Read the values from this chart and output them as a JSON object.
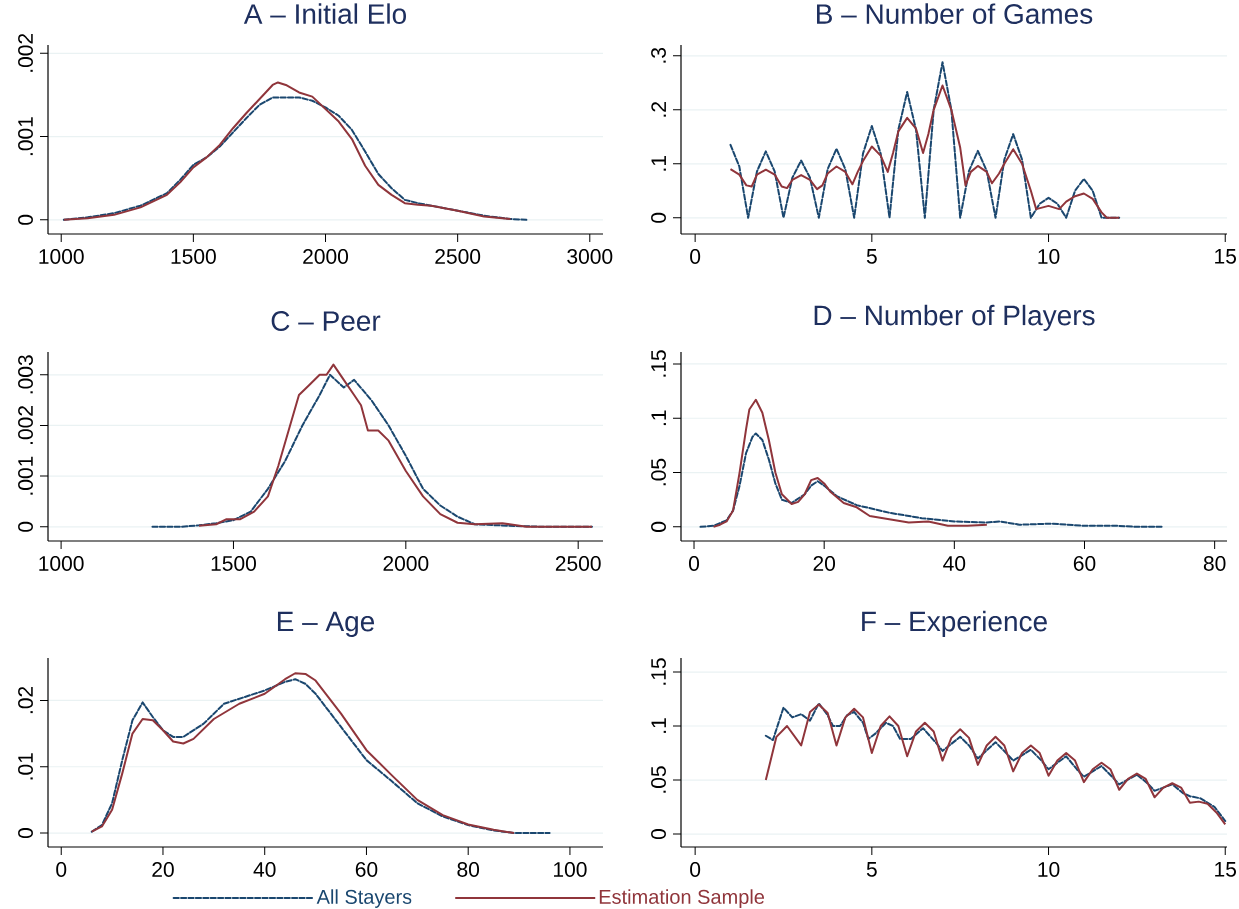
{
  "chart_data": [
    {
      "type": "line",
      "title": "A – Initial Elo",
      "xlim": [
        950,
        3050
      ],
      "ylim": [
        -0.00017,
        0.0021
      ],
      "xticks": [
        1000,
        1500,
        2000,
        2500,
        3000
      ],
      "yticks": [
        0,
        {
          "value": 0.001,
          "label": ".001"
        },
        {
          "value": 0.002,
          "label": ".002"
        }
      ],
      "grid": "y",
      "series": [
        {
          "color": "#1a476f",
          "line_style": "dashed",
          "x": [
            1010,
            1100,
            1200,
            1300,
            1400,
            1450,
            1500,
            1550,
            1600,
            1650,
            1700,
            1750,
            1800,
            1850,
            1900,
            1950,
            2000,
            2050,
            2100,
            2150,
            2200,
            2250,
            2300,
            2350,
            2400,
            2500,
            2600,
            2700,
            2760
          ],
          "values": [
            0,
            3e-05,
            8e-05,
            0.00017,
            0.00032,
            0.00048,
            0.00066,
            0.00075,
            0.00088,
            0.00105,
            0.00122,
            0.00138,
            0.00147,
            0.00147,
            0.00147,
            0.00143,
            0.00135,
            0.00125,
            0.00108,
            0.00082,
            0.00055,
            0.00038,
            0.00024,
            0.0002,
            0.00017,
            0.00011,
            5e-05,
            1e-05,
            0
          ]
        },
        {
          "color": "#90353b",
          "line_style": "solid",
          "x": [
            1010,
            1100,
            1200,
            1300,
            1400,
            1450,
            1500,
            1550,
            1600,
            1650,
            1700,
            1750,
            1800,
            1820,
            1850,
            1900,
            1950,
            2000,
            2050,
            2100,
            2150,
            2200,
            2250,
            2300,
            2350,
            2400,
            2500,
            2600,
            2700
          ],
          "values": [
            0,
            2e-05,
            6e-05,
            0.00015,
            0.0003,
            0.00045,
            0.00063,
            0.00075,
            0.0009,
            0.0011,
            0.00128,
            0.00145,
            0.00162,
            0.00165,
            0.00162,
            0.00153,
            0.00148,
            0.00133,
            0.00118,
            0.00097,
            0.00065,
            0.00042,
            0.0003,
            0.0002,
            0.00018,
            0.00017,
            0.00011,
            4e-05,
            1e-05
          ]
        }
      ]
    },
    {
      "type": "line",
      "title": "B – Number of Games",
      "xlim": [
        -0.4,
        15.05
      ],
      "ylim": [
        -0.03,
        0.32
      ],
      "xticks": [
        0,
        5,
        10,
        15
      ],
      "yticks": [
        0,
        {
          "value": 0.1,
          "label": ".1"
        },
        {
          "value": 0.2,
          "label": ".2"
        },
        {
          "value": 0.3,
          "label": ".3"
        }
      ],
      "grid": "y",
      "series": [
        {
          "color": "#1a476f",
          "line_style": "dashed",
          "x": [
            1,
            1.25,
            1.5,
            1.75,
            2,
            2.25,
            2.5,
            2.75,
            3,
            3.25,
            3.5,
            3.75,
            4,
            4.25,
            4.5,
            4.75,
            5,
            5.25,
            5.5,
            5.75,
            6,
            6.25,
            6.5,
            6.75,
            7,
            7.25,
            7.5,
            7.75,
            8,
            8.25,
            8.5,
            8.75,
            9,
            9.25,
            9.5,
            9.75,
            10,
            10.25,
            10.5,
            10.75,
            11,
            11.25,
            11.5,
            12
          ],
          "values": [
            0.135,
            0.095,
            0,
            0.086,
            0.123,
            0.086,
            0,
            0.074,
            0.106,
            0.074,
            0,
            0.09,
            0.128,
            0.09,
            0,
            0.119,
            0.17,
            0.119,
            0,
            0.163,
            0.233,
            0.163,
            0,
            0.2,
            0.288,
            0.2,
            0,
            0.087,
            0.124,
            0.087,
            0,
            0.108,
            0.155,
            0.108,
            0,
            0.026,
            0.037,
            0.026,
            0,
            0.05,
            0.072,
            0.05,
            0,
            0
          ]
        },
        {
          "color": "#90353b",
          "line_style": "solid",
          "x": [
            1,
            1.25,
            1.45,
            1.6,
            1.75,
            2,
            2.25,
            2.45,
            2.6,
            2.75,
            3,
            3.25,
            3.45,
            3.6,
            3.75,
            4,
            4.25,
            4.45,
            4.6,
            4.75,
            5,
            5.25,
            5.45,
            5.6,
            5.75,
            6,
            6.25,
            6.45,
            6.6,
            6.75,
            7,
            7.25,
            7.5,
            7.65,
            7.8,
            8,
            8.25,
            8.4,
            8.6,
            8.75,
            9,
            9.25,
            9.5,
            9.65,
            10,
            10.3,
            10.5,
            10.75,
            11,
            11.25,
            11.5,
            11.65,
            12
          ],
          "values": [
            0.09,
            0.08,
            0.06,
            0.058,
            0.08,
            0.089,
            0.08,
            0.058,
            0.055,
            0.07,
            0.079,
            0.07,
            0.053,
            0.06,
            0.082,
            0.095,
            0.085,
            0.062,
            0.085,
            0.105,
            0.132,
            0.115,
            0.085,
            0.12,
            0.16,
            0.185,
            0.165,
            0.12,
            0.155,
            0.2,
            0.245,
            0.2,
            0.13,
            0.06,
            0.085,
            0.096,
            0.085,
            0.064,
            0.082,
            0.1,
            0.127,
            0.1,
            0.05,
            0.016,
            0.022,
            0.016,
            0.03,
            0.04,
            0.045,
            0.035,
            0.01,
            0,
            0
          ]
        }
      ]
    },
    {
      "type": "line",
      "title": "C – Peer",
      "xlim": [
        962,
        2572
      ],
      "ylim": [
        -0.00028,
        0.00345
      ],
      "xticks": [
        1000,
        1500,
        2000,
        2500
      ],
      "yticks": [
        0,
        {
          "value": 0.001,
          "label": ".001"
        },
        {
          "value": 0.002,
          "label": ".002"
        },
        {
          "value": 0.003,
          "label": ".003"
        }
      ],
      "grid": "y",
      "series": [
        {
          "color": "#1a476f",
          "line_style": "dashed",
          "x": [
            1265,
            1350,
            1400,
            1450,
            1500,
            1550,
            1600,
            1650,
            1700,
            1750,
            1780,
            1820,
            1850,
            1875,
            1900,
            1950,
            2000,
            2050,
            2100,
            2150,
            2200,
            2300,
            2400,
            2540
          ],
          "values": [
            0,
            0,
            3e-05,
            7e-05,
            0.00013,
            0.0003,
            0.00075,
            0.0013,
            0.002,
            0.0026,
            0.003,
            0.00275,
            0.0029,
            0.0027,
            0.0025,
            0.002,
            0.0014,
            0.00075,
            0.00042,
            0.0002,
            5e-05,
            2e-05,
            0,
            0
          ]
        },
        {
          "color": "#90353b",
          "line_style": "solid",
          "x": [
            1400,
            1450,
            1480,
            1520,
            1560,
            1600,
            1630,
            1660,
            1690,
            1720,
            1750,
            1770,
            1790,
            1820,
            1850,
            1870,
            1890,
            1920,
            1950,
            2000,
            2050,
            2100,
            2150,
            2200,
            2280,
            2350,
            2540
          ],
          "values": [
            2e-05,
            5e-05,
            0.00015,
            0.00015,
            0.0003,
            0.0006,
            0.0012,
            0.0019,
            0.0026,
            0.0028,
            0.003,
            0.003,
            0.0032,
            0.0029,
            0.0026,
            0.0024,
            0.0019,
            0.0019,
            0.0017,
            0.0011,
            0.0006,
            0.00025,
            8e-05,
            5e-05,
            7e-05,
            0,
            0
          ]
        }
      ]
    },
    {
      "type": "line",
      "title": "D – Number of Players",
      "xlim": [
        -2,
        81.9
      ],
      "ylim": [
        -0.013,
        0.161
      ],
      "xticks": [
        0,
        20,
        40,
        60,
        80
      ],
      "yticks": [
        0,
        {
          "value": 0.05,
          "label": ".05"
        },
        {
          "value": 0.1,
          "label": ".1"
        },
        {
          "value": 0.15,
          "label": ".15"
        }
      ],
      "grid": "y",
      "series": [
        {
          "color": "#1a476f",
          "line_style": "dashed",
          "x": [
            1,
            3,
            5,
            6,
            7,
            8,
            9,
            9.5,
            10.5,
            11.5,
            12.5,
            13.5,
            15,
            17,
            18,
            19,
            20,
            22,
            25,
            30,
            35,
            40,
            45,
            47,
            50,
            55,
            60,
            65,
            68,
            72
          ],
          "values": [
            0,
            0.001,
            0.006,
            0.015,
            0.038,
            0.068,
            0.083,
            0.086,
            0.08,
            0.062,
            0.04,
            0.025,
            0.022,
            0.03,
            0.038,
            0.042,
            0.038,
            0.028,
            0.02,
            0.013,
            0.008,
            0.005,
            0.004,
            0.005,
            0.002,
            0.003,
            0.001,
            0.001,
            0,
            0
          ]
        },
        {
          "color": "#90353b",
          "line_style": "solid",
          "x": [
            3,
            4,
            5,
            6,
            7,
            8,
            8.5,
            9.5,
            10.5,
            11.5,
            12.5,
            13.5,
            15,
            16,
            17,
            18,
            19,
            20,
            21,
            23,
            25,
            27,
            30,
            33,
            36,
            39,
            42,
            45
          ],
          "values": [
            0,
            0.002,
            0.005,
            0.015,
            0.05,
            0.09,
            0.108,
            0.117,
            0.105,
            0.08,
            0.05,
            0.03,
            0.021,
            0.023,
            0.03,
            0.043,
            0.045,
            0.04,
            0.032,
            0.022,
            0.018,
            0.01,
            0.007,
            0.004,
            0.005,
            0.001,
            0.001,
            0.002
          ]
        }
      ]
    },
    {
      "type": "line",
      "title": "E – Age",
      "xlim": [
        -2.6,
        106.5
      ],
      "ylim": [
        -0.0021,
        0.0264
      ],
      "xticks": [
        0,
        20,
        40,
        60,
        80,
        100
      ],
      "yticks": [
        0,
        {
          "value": 0.01,
          "label": ".01"
        },
        {
          "value": 0.02,
          "label": ".02"
        }
      ],
      "grid": "y",
      "legend": "bottom",
      "series": [
        {
          "name": "All Stayers",
          "color": "#1a476f",
          "line_style": "dashed",
          "x": [
            6,
            8,
            10,
            12,
            14,
            16,
            18,
            20,
            22,
            24,
            28,
            32,
            36,
            40,
            44,
            46,
            48,
            50,
            55,
            60,
            65,
            70,
            75,
            80,
            85,
            89,
            96
          ],
          "values": [
            0.0002,
            0.0012,
            0.0045,
            0.011,
            0.017,
            0.0197,
            0.0175,
            0.0155,
            0.0145,
            0.0145,
            0.0165,
            0.0195,
            0.0205,
            0.0215,
            0.0228,
            0.0232,
            0.0225,
            0.021,
            0.016,
            0.011,
            0.0078,
            0.0045,
            0.0025,
            0.0012,
            0.0004,
            0,
            0
          ]
        },
        {
          "name": "Estimation Sample",
          "color": "#90353b",
          "line_style": "solid",
          "x": [
            6,
            8,
            10,
            12,
            14,
            16,
            18,
            20,
            22,
            24,
            26,
            30,
            35,
            40,
            44,
            46,
            48,
            50,
            55,
            60,
            65,
            70,
            75,
            80,
            85,
            89
          ],
          "values": [
            0.0002,
            0.001,
            0.0035,
            0.009,
            0.015,
            0.0172,
            0.017,
            0.0155,
            0.0138,
            0.0135,
            0.0142,
            0.0172,
            0.0195,
            0.021,
            0.0232,
            0.0241,
            0.024,
            0.023,
            0.018,
            0.0125,
            0.0087,
            0.005,
            0.0027,
            0.0013,
            0.0005,
            0
          ]
        }
      ]
    },
    {
      "type": "line",
      "title": "F – Experience",
      "xlim": [
        -0.4,
        15.05
      ],
      "ylim": [
        -0.012,
        0.163
      ],
      "xticks": [
        0,
        5,
        10,
        15
      ],
      "yticks": [
        0,
        {
          "value": 0.05,
          "label": ".05"
        },
        {
          "value": 0.1,
          "label": ".1"
        },
        {
          "value": 0.15,
          "label": ".15"
        }
      ],
      "grid": "y",
      "series": [
        {
          "color": "#1a476f",
          "line_style": "dashed",
          "x": [
            2,
            2.2,
            2.5,
            2.75,
            3,
            3.25,
            3.5,
            3.75,
            3.9,
            4.1,
            4.3,
            4.5,
            4.75,
            4.9,
            5.1,
            5.4,
            5.6,
            5.8,
            6.1,
            6.45,
            6.8,
            7,
            7.5,
            7.75,
            8,
            8.5,
            8.8,
            9,
            9.5,
            9.8,
            10,
            10.5,
            10.8,
            11,
            11.5,
            11.8,
            12,
            12.5,
            12.8,
            13,
            13.5,
            13.8,
            14,
            14.3,
            14.7,
            15
          ],
          "values": [
            0.091,
            0.087,
            0.117,
            0.108,
            0.111,
            0.105,
            0.121,
            0.11,
            0.1,
            0.1,
            0.11,
            0.113,
            0.103,
            0.088,
            0.093,
            0.103,
            0.1,
            0.088,
            0.088,
            0.098,
            0.085,
            0.077,
            0.09,
            0.082,
            0.07,
            0.085,
            0.075,
            0.068,
            0.078,
            0.068,
            0.06,
            0.072,
            0.06,
            0.053,
            0.063,
            0.053,
            0.046,
            0.055,
            0.047,
            0.04,
            0.046,
            0.038,
            0.035,
            0.033,
            0.025,
            0.012
          ]
        },
        {
          "color": "#90353b",
          "line_style": "solid",
          "x": [
            2,
            2.3,
            2.6,
            3,
            3.25,
            3.5,
            3.75,
            4,
            4.25,
            4.5,
            4.75,
            5,
            5.25,
            5.5,
            5.75,
            6,
            6.25,
            6.5,
            6.75,
            7,
            7.25,
            7.5,
            7.75,
            8,
            8.25,
            8.5,
            8.75,
            9,
            9.25,
            9.5,
            9.75,
            10,
            10.25,
            10.5,
            10.75,
            11,
            11.25,
            11.5,
            11.75,
            12,
            12.25,
            12.5,
            12.75,
            13,
            13.25,
            13.5,
            13.75,
            14,
            14.25,
            14.5,
            14.75,
            15
          ],
          "values": [
            0.05,
            0.09,
            0.1,
            0.082,
            0.113,
            0.12,
            0.112,
            0.082,
            0.108,
            0.116,
            0.108,
            0.075,
            0.1,
            0.109,
            0.1,
            0.072,
            0.095,
            0.103,
            0.095,
            0.068,
            0.089,
            0.097,
            0.089,
            0.064,
            0.082,
            0.09,
            0.082,
            0.058,
            0.075,
            0.082,
            0.075,
            0.054,
            0.068,
            0.075,
            0.068,
            0.048,
            0.06,
            0.066,
            0.06,
            0.041,
            0.051,
            0.056,
            0.051,
            0.034,
            0.043,
            0.047,
            0.043,
            0.029,
            0.03,
            0.028,
            0.02,
            0.009
          ]
        }
      ]
    }
  ]
}
